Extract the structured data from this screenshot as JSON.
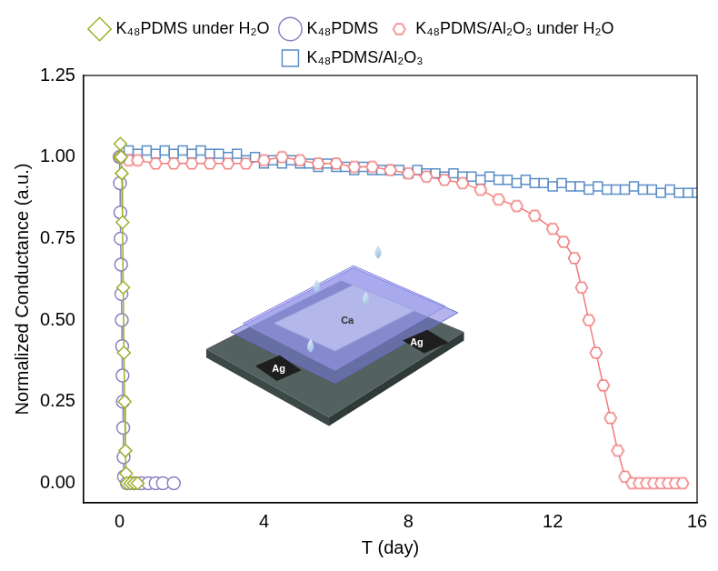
{
  "chart_data": {
    "type": "line",
    "x_label": "T (day)",
    "y_label": "Normalized Conductance (a.u.)",
    "xlim": [
      -1,
      16
    ],
    "xticks": [
      0,
      4,
      8,
      12,
      16
    ],
    "ylim": [
      -0.06,
      1.25
    ],
    "yticks": [
      {
        "value": 0,
        "label": "0.00"
      },
      {
        "value": 0.25,
        "label": "0.25"
      },
      {
        "value": 0.5,
        "label": "0.50"
      },
      {
        "value": 0.75,
        "label": "0.75"
      },
      {
        "value": 1,
        "label": "1.00"
      },
      {
        "value": 1.25,
        "label": "1.25"
      }
    ],
    "grid": false,
    "legend": "top",
    "annotations": [
      "Ca",
      "Ag",
      "Ag"
    ],
    "series": [
      {
        "name": "K₄₈PDMS under H₂O",
        "color": "#9fae2b",
        "marker": "diamond",
        "line_style": "solid",
        "x": [
          0,
          0.02,
          0.04,
          0.06,
          0.08,
          0.1,
          0.12,
          0.14,
          0.16,
          0.18,
          0.2,
          0.3,
          0.4,
          0.5
        ],
        "values": [
          1.0,
          1.04,
          1.0,
          0.95,
          0.8,
          0.6,
          0.4,
          0.25,
          0.1,
          0.03,
          0,
          0,
          0,
          0
        ]
      },
      {
        "name": "K₄₈PDMS",
        "color": "#8e80c2",
        "marker": "circle",
        "line_style": "solid",
        "x": [
          0,
          0.01,
          0.02,
          0.03,
          0.04,
          0.05,
          0.06,
          0.07,
          0.08,
          0.09,
          0.1,
          0.11,
          0.12,
          0.2,
          0.4,
          0.6,
          0.8,
          1.0,
          1.2,
          1.5
        ],
        "values": [
          1.0,
          0.92,
          0.83,
          0.75,
          0.67,
          0.58,
          0.5,
          0.42,
          0.33,
          0.25,
          0.17,
          0.08,
          0.02,
          0,
          0,
          0,
          0,
          0,
          0,
          0
        ]
      },
      {
        "name": "K₄₈PDMS/Al₂O₃ under H₂O",
        "color": "#f07c7c",
        "marker": "hexagon",
        "line_style": "solid",
        "x": [
          0,
          0.25,
          0.5,
          1,
          1.5,
          2,
          2.5,
          3,
          3.5,
          4,
          4.5,
          5,
          5.5,
          6,
          6.5,
          7,
          7.5,
          8,
          8.5,
          9,
          9.5,
          10,
          10.5,
          11,
          11.5,
          12,
          12.3,
          12.6,
          12.8,
          13,
          13.2,
          13.4,
          13.6,
          13.8,
          14,
          14.2,
          14.4,
          14.6,
          14.8,
          15,
          15.2,
          15.4,
          15.6
        ],
        "values": [
          1.0,
          0.99,
          0.99,
          0.98,
          0.98,
          0.98,
          0.98,
          0.98,
          0.98,
          0.99,
          1.0,
          0.99,
          0.98,
          0.98,
          0.97,
          0.97,
          0.96,
          0.95,
          0.94,
          0.93,
          0.92,
          0.9,
          0.87,
          0.85,
          0.82,
          0.78,
          0.74,
          0.69,
          0.6,
          0.5,
          0.4,
          0.3,
          0.2,
          0.1,
          0.02,
          0,
          0,
          0,
          0,
          0,
          0,
          0,
          0
        ]
      },
      {
        "name": "K₄₈PDMS/Al₂O₃",
        "color": "#5a8ec8",
        "marker": "square",
        "line_style": "solid",
        "x": [
          0,
          0.25,
          0.5,
          0.75,
          1,
          1.25,
          1.5,
          1.75,
          2,
          2.25,
          2.5,
          2.75,
          3,
          3.25,
          3.5,
          3.75,
          4,
          4.25,
          4.5,
          4.75,
          5,
          5.25,
          5.5,
          5.75,
          6,
          6.25,
          6.5,
          6.75,
          7,
          7.25,
          7.5,
          7.75,
          8,
          8.25,
          8.5,
          8.75,
          9,
          9.25,
          9.5,
          9.75,
          10,
          10.25,
          10.5,
          10.75,
          11,
          11.25,
          11.5,
          11.75,
          12,
          12.25,
          12.5,
          12.75,
          13,
          13.25,
          13.5,
          13.75,
          14,
          14.25,
          14.5,
          14.75,
          15,
          15.25,
          15.5,
          15.75,
          16
        ],
        "values": [
          1.0,
          1.02,
          1.01,
          1.02,
          1.01,
          1.02,
          1.01,
          1.02,
          1.01,
          1.02,
          1.01,
          1.01,
          1.0,
          1.01,
          0.99,
          1.0,
          0.98,
          0.99,
          0.98,
          0.99,
          0.98,
          0.98,
          0.97,
          0.98,
          0.97,
          0.97,
          0.96,
          0.97,
          0.96,
          0.96,
          0.96,
          0.96,
          0.95,
          0.96,
          0.95,
          0.95,
          0.94,
          0.95,
          0.94,
          0.94,
          0.93,
          0.94,
          0.93,
          0.93,
          0.92,
          0.93,
          0.92,
          0.92,
          0.91,
          0.92,
          0.91,
          0.91,
          0.9,
          0.91,
          0.9,
          0.9,
          0.9,
          0.91,
          0.9,
          0.9,
          0.89,
          0.9,
          0.89,
          0.89,
          0.89
        ]
      }
    ]
  }
}
